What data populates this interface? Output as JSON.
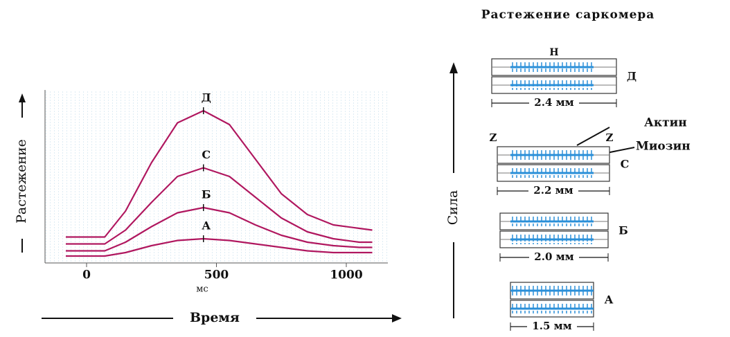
{
  "chart_data": {
    "type": "line",
    "x": [
      -80,
      0,
      70,
      150,
      250,
      350,
      450,
      550,
      650,
      750,
      850,
      950,
      1050,
      1100
    ],
    "series": [
      {
        "name": "А",
        "color": "#b0175f",
        "values": [
          4,
          4,
          4,
          6,
          10,
          13,
          14,
          13,
          11,
          9,
          7,
          6,
          6,
          6
        ]
      },
      {
        "name": "Б",
        "color": "#b0175f",
        "values": [
          7,
          7,
          7,
          12,
          21,
          29,
          32,
          29,
          22,
          16,
          12,
          10,
          9,
          9
        ]
      },
      {
        "name": "С",
        "color": "#b0175f",
        "values": [
          11,
          11,
          11,
          19,
          35,
          50,
          55,
          50,
          38,
          26,
          18,
          14,
          12,
          12
        ]
      },
      {
        "name": "Д",
        "color": "#b0175f",
        "values": [
          15,
          15,
          15,
          30,
          58,
          81,
          88,
          80,
          60,
          40,
          28,
          22,
          20,
          19
        ]
      }
    ],
    "xlim": [
      -160,
      1160
    ],
    "xticks": [
      0,
      500,
      1000
    ],
    "ylim": [
      0,
      100
    ],
    "x_unit": "мс",
    "xlabel": "Время",
    "ylabel": "Растежение"
  },
  "diagram": {
    "title": "Растежение саркомера",
    "axis_label": "Сила",
    "h_label": "H",
    "z_label": "Z",
    "actin_label": "Актин",
    "myosin_label": "Миозин",
    "sarcomeres": [
      {
        "label": "Д",
        "length": "2.4 мм"
      },
      {
        "label": "С",
        "length": "2.2 мм"
      },
      {
        "label": "Б",
        "length": "2.0 мм"
      },
      {
        "label": "А",
        "length": "1.5 мм"
      }
    ]
  }
}
